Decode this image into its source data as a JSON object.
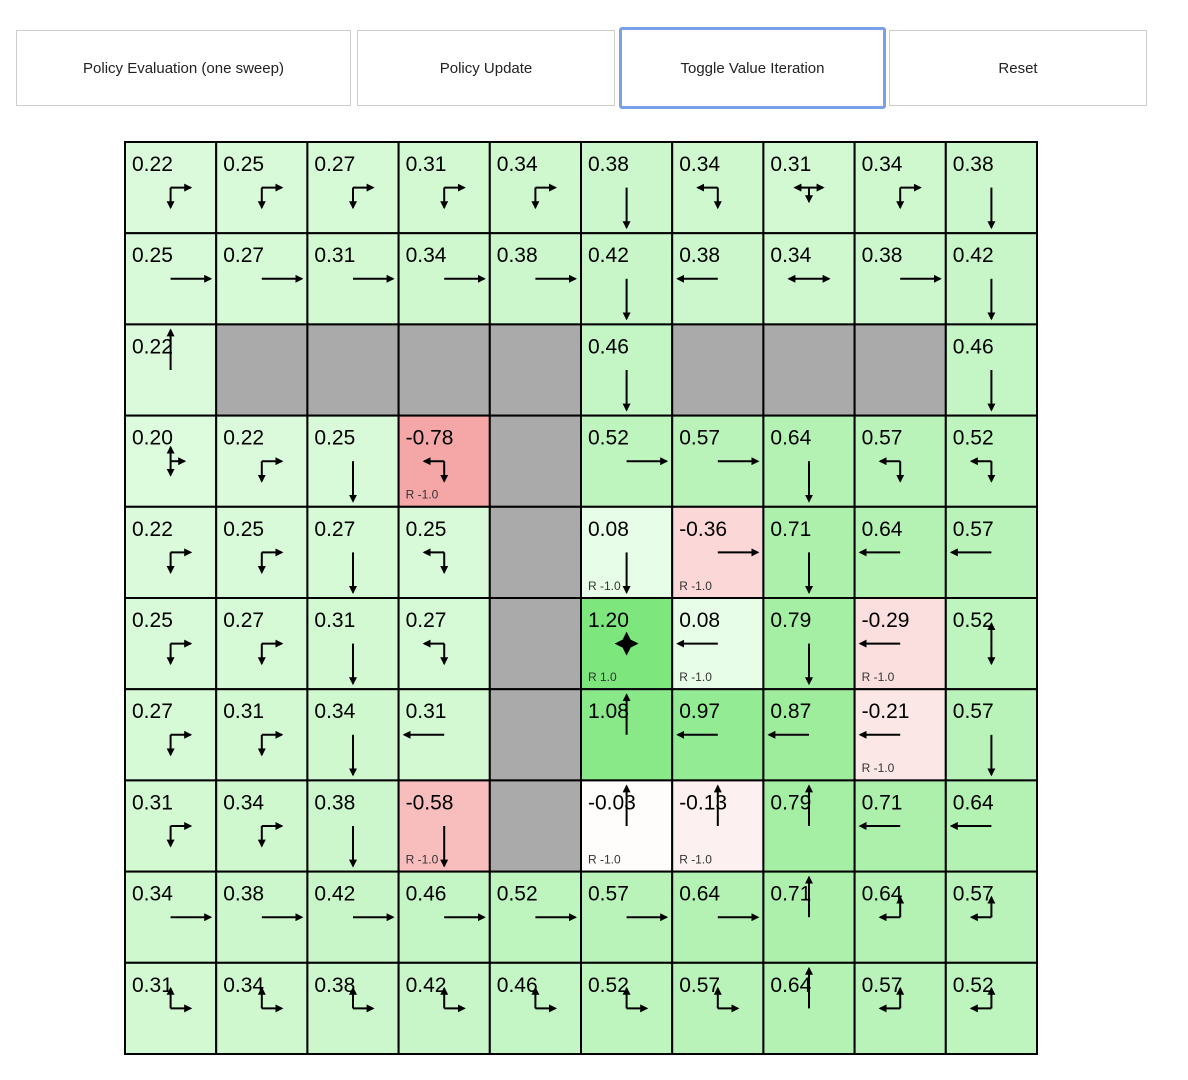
{
  "toolbar": {
    "buttons": [
      {
        "id": "policy-evaluation-button",
        "label": "Policy Evaluation (one sweep)"
      },
      {
        "id": "policy-update-button",
        "label": "Policy Update"
      },
      {
        "id": "toggle-value-iteration-button",
        "label": "Toggle Value Iteration",
        "focused": true
      },
      {
        "id": "reset-button",
        "label": "Reset"
      }
    ]
  },
  "colors": {
    "wall": "#aaaaaa",
    "grid_line": "#000000",
    "positive": "#7fe57f",
    "negative": "#f5a8a8",
    "focus": "#7aa0e8"
  },
  "grid": {
    "rows": [
      [
        {
          "v": "0.22",
          "p": "rd"
        },
        {
          "v": "0.25",
          "p": "rd"
        },
        {
          "v": "0.27",
          "p": "rd"
        },
        {
          "v": "0.31",
          "p": "rd"
        },
        {
          "v": "0.34",
          "p": "rd"
        },
        {
          "v": "0.38",
          "p": "d"
        },
        {
          "v": "0.34",
          "p": "ld"
        },
        {
          "v": "0.31",
          "p": "lrd"
        },
        {
          "v": "0.34",
          "p": "rd"
        },
        {
          "v": "0.38",
          "p": "d"
        }
      ],
      [
        {
          "v": "0.25",
          "p": "r"
        },
        {
          "v": "0.27",
          "p": "r"
        },
        {
          "v": "0.31",
          "p": "r"
        },
        {
          "v": "0.34",
          "p": "r"
        },
        {
          "v": "0.38",
          "p": "r"
        },
        {
          "v": "0.42",
          "p": "d"
        },
        {
          "v": "0.38",
          "p": "l"
        },
        {
          "v": "0.34",
          "p": "lr"
        },
        {
          "v": "0.38",
          "p": "r"
        },
        {
          "v": "0.42",
          "p": "d"
        }
      ],
      [
        {
          "v": "0.22",
          "p": "u"
        },
        {
          "wall": true
        },
        {
          "wall": true
        },
        {
          "wall": true
        },
        {
          "wall": true
        },
        {
          "v": "0.46",
          "p": "d"
        },
        {
          "wall": true
        },
        {
          "wall": true
        },
        {
          "wall": true
        },
        {
          "v": "0.46",
          "p": "d"
        }
      ],
      [
        {
          "v": "0.20",
          "p": "urd"
        },
        {
          "v": "0.22",
          "p": "rd"
        },
        {
          "v": "0.25",
          "p": "d"
        },
        {
          "v": "-0.78",
          "p": "ld",
          "r": "R -1.0"
        },
        {
          "wall": true
        },
        {
          "v": "0.52",
          "p": "r"
        },
        {
          "v": "0.57",
          "p": "r"
        },
        {
          "v": "0.64",
          "p": "d"
        },
        {
          "v": "0.57",
          "p": "ld"
        },
        {
          "v": "0.52",
          "p": "ld"
        }
      ],
      [
        {
          "v": "0.22",
          "p": "rd"
        },
        {
          "v": "0.25",
          "p": "rd"
        },
        {
          "v": "0.27",
          "p": "d"
        },
        {
          "v": "0.25",
          "p": "ld"
        },
        {
          "wall": true
        },
        {
          "v": "0.08",
          "p": "d",
          "r": "R -1.0"
        },
        {
          "v": "-0.36",
          "p": "r",
          "r": "R -1.0"
        },
        {
          "v": "0.71",
          "p": "d"
        },
        {
          "v": "0.64",
          "p": "l"
        },
        {
          "v": "0.57",
          "p": "l"
        }
      ],
      [
        {
          "v": "0.25",
          "p": "rd"
        },
        {
          "v": "0.27",
          "p": "rd"
        },
        {
          "v": "0.31",
          "p": "d"
        },
        {
          "v": "0.27",
          "p": "ld"
        },
        {
          "wall": true
        },
        {
          "v": "1.20",
          "p": "",
          "goal": true,
          "icon": "star-icon",
          "r": "R 1.0"
        },
        {
          "v": "0.08",
          "p": "l",
          "r": "R -1.0"
        },
        {
          "v": "0.79",
          "p": "d"
        },
        {
          "v": "-0.29",
          "p": "l",
          "r": "R -1.0"
        },
        {
          "v": "0.52",
          "p": "ud"
        }
      ],
      [
        {
          "v": "0.27",
          "p": "rd"
        },
        {
          "v": "0.31",
          "p": "rd"
        },
        {
          "v": "0.34",
          "p": "d"
        },
        {
          "v": "0.31",
          "p": "l"
        },
        {
          "wall": true
        },
        {
          "v": "1.08",
          "p": "u"
        },
        {
          "v": "0.97",
          "p": "l"
        },
        {
          "v": "0.87",
          "p": "l"
        },
        {
          "v": "-0.21",
          "p": "l",
          "r": "R -1.0"
        },
        {
          "v": "0.57",
          "p": "d"
        }
      ],
      [
        {
          "v": "0.31",
          "p": "rd"
        },
        {
          "v": "0.34",
          "p": "rd"
        },
        {
          "v": "0.38",
          "p": "d"
        },
        {
          "v": "-0.58",
          "p": "d",
          "r": "R -1.0"
        },
        {
          "wall": true
        },
        {
          "v": "-0.03",
          "p": "u",
          "r": "R -1.0"
        },
        {
          "v": "-0.13",
          "p": "u",
          "r": "R -1.0"
        },
        {
          "v": "0.79",
          "p": "u"
        },
        {
          "v": "0.71",
          "p": "l"
        },
        {
          "v": "0.64",
          "p": "l"
        }
      ],
      [
        {
          "v": "0.34",
          "p": "r"
        },
        {
          "v": "0.38",
          "p": "r"
        },
        {
          "v": "0.42",
          "p": "r"
        },
        {
          "v": "0.46",
          "p": "r"
        },
        {
          "v": "0.52",
          "p": "r"
        },
        {
          "v": "0.57",
          "p": "r"
        },
        {
          "v": "0.64",
          "p": "r"
        },
        {
          "v": "0.71",
          "p": "u"
        },
        {
          "v": "0.64",
          "p": "lu"
        },
        {
          "v": "0.57",
          "p": "lu"
        }
      ],
      [
        {
          "v": "0.31",
          "p": "ur"
        },
        {
          "v": "0.34",
          "p": "ur"
        },
        {
          "v": "0.38",
          "p": "ur"
        },
        {
          "v": "0.42",
          "p": "ur"
        },
        {
          "v": "0.46",
          "p": "ur"
        },
        {
          "v": "0.52",
          "p": "ur"
        },
        {
          "v": "0.57",
          "p": "ur"
        },
        {
          "v": "0.64",
          "p": "u"
        },
        {
          "v": "0.57",
          "p": "lu"
        },
        {
          "v": "0.52",
          "p": "lu"
        }
      ]
    ]
  }
}
